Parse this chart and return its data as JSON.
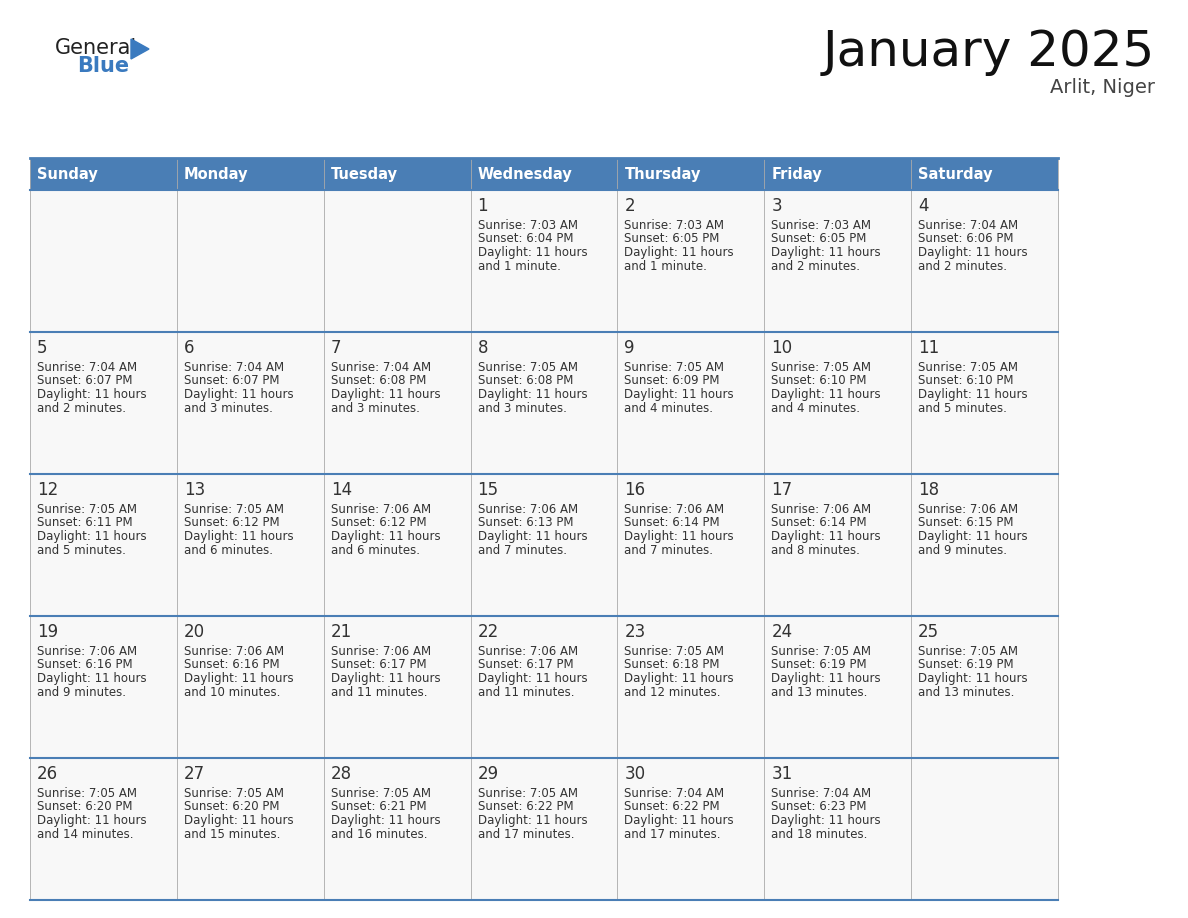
{
  "title": "January 2025",
  "subtitle": "Arlit, Niger",
  "days_of_week": [
    "Sunday",
    "Monday",
    "Tuesday",
    "Wednesday",
    "Thursday",
    "Friday",
    "Saturday"
  ],
  "header_bg": "#4a7eb5",
  "header_text_color": "#ffffff",
  "cell_bg": "#f8f8f8",
  "text_color": "#333333",
  "day_num_color": "#333333",
  "border_color": "#4a7eb5",
  "thin_border_color": "#aaaaaa",
  "title_color": "#111111",
  "subtitle_color": "#444444",
  "logo_general_color": "#222222",
  "logo_blue_color": "#3a7abf",
  "calendar_data": [
    {
      "day": 1,
      "col": 3,
      "row": 0,
      "sunrise": "7:03 AM",
      "sunset": "6:04 PM",
      "daylight_l1": "11 hours",
      "daylight_l2": "and 1 minute."
    },
    {
      "day": 2,
      "col": 4,
      "row": 0,
      "sunrise": "7:03 AM",
      "sunset": "6:05 PM",
      "daylight_l1": "11 hours",
      "daylight_l2": "and 1 minute."
    },
    {
      "day": 3,
      "col": 5,
      "row": 0,
      "sunrise": "7:03 AM",
      "sunset": "6:05 PM",
      "daylight_l1": "11 hours",
      "daylight_l2": "and 2 minutes."
    },
    {
      "day": 4,
      "col": 6,
      "row": 0,
      "sunrise": "7:04 AM",
      "sunset": "6:06 PM",
      "daylight_l1": "11 hours",
      "daylight_l2": "and 2 minutes."
    },
    {
      "day": 5,
      "col": 0,
      "row": 1,
      "sunrise": "7:04 AM",
      "sunset": "6:07 PM",
      "daylight_l1": "11 hours",
      "daylight_l2": "and 2 minutes."
    },
    {
      "day": 6,
      "col": 1,
      "row": 1,
      "sunrise": "7:04 AM",
      "sunset": "6:07 PM",
      "daylight_l1": "11 hours",
      "daylight_l2": "and 3 minutes."
    },
    {
      "day": 7,
      "col": 2,
      "row": 1,
      "sunrise": "7:04 AM",
      "sunset": "6:08 PM",
      "daylight_l1": "11 hours",
      "daylight_l2": "and 3 minutes."
    },
    {
      "day": 8,
      "col": 3,
      "row": 1,
      "sunrise": "7:05 AM",
      "sunset": "6:08 PM",
      "daylight_l1": "11 hours",
      "daylight_l2": "and 3 minutes."
    },
    {
      "day": 9,
      "col": 4,
      "row": 1,
      "sunrise": "7:05 AM",
      "sunset": "6:09 PM",
      "daylight_l1": "11 hours",
      "daylight_l2": "and 4 minutes."
    },
    {
      "day": 10,
      "col": 5,
      "row": 1,
      "sunrise": "7:05 AM",
      "sunset": "6:10 PM",
      "daylight_l1": "11 hours",
      "daylight_l2": "and 4 minutes."
    },
    {
      "day": 11,
      "col": 6,
      "row": 1,
      "sunrise": "7:05 AM",
      "sunset": "6:10 PM",
      "daylight_l1": "11 hours",
      "daylight_l2": "and 5 minutes."
    },
    {
      "day": 12,
      "col": 0,
      "row": 2,
      "sunrise": "7:05 AM",
      "sunset": "6:11 PM",
      "daylight_l1": "11 hours",
      "daylight_l2": "and 5 minutes."
    },
    {
      "day": 13,
      "col": 1,
      "row": 2,
      "sunrise": "7:05 AM",
      "sunset": "6:12 PM",
      "daylight_l1": "11 hours",
      "daylight_l2": "and 6 minutes."
    },
    {
      "day": 14,
      "col": 2,
      "row": 2,
      "sunrise": "7:06 AM",
      "sunset": "6:12 PM",
      "daylight_l1": "11 hours",
      "daylight_l2": "and 6 minutes."
    },
    {
      "day": 15,
      "col": 3,
      "row": 2,
      "sunrise": "7:06 AM",
      "sunset": "6:13 PM",
      "daylight_l1": "11 hours",
      "daylight_l2": "and 7 minutes."
    },
    {
      "day": 16,
      "col": 4,
      "row": 2,
      "sunrise": "7:06 AM",
      "sunset": "6:14 PM",
      "daylight_l1": "11 hours",
      "daylight_l2": "and 7 minutes."
    },
    {
      "day": 17,
      "col": 5,
      "row": 2,
      "sunrise": "7:06 AM",
      "sunset": "6:14 PM",
      "daylight_l1": "11 hours",
      "daylight_l2": "and 8 minutes."
    },
    {
      "day": 18,
      "col": 6,
      "row": 2,
      "sunrise": "7:06 AM",
      "sunset": "6:15 PM",
      "daylight_l1": "11 hours",
      "daylight_l2": "and 9 minutes."
    },
    {
      "day": 19,
      "col": 0,
      "row": 3,
      "sunrise": "7:06 AM",
      "sunset": "6:16 PM",
      "daylight_l1": "11 hours",
      "daylight_l2": "and 9 minutes."
    },
    {
      "day": 20,
      "col": 1,
      "row": 3,
      "sunrise": "7:06 AM",
      "sunset": "6:16 PM",
      "daylight_l1": "11 hours",
      "daylight_l2": "and 10 minutes."
    },
    {
      "day": 21,
      "col": 2,
      "row": 3,
      "sunrise": "7:06 AM",
      "sunset": "6:17 PM",
      "daylight_l1": "11 hours",
      "daylight_l2": "and 11 minutes."
    },
    {
      "day": 22,
      "col": 3,
      "row": 3,
      "sunrise": "7:06 AM",
      "sunset": "6:17 PM",
      "daylight_l1": "11 hours",
      "daylight_l2": "and 11 minutes."
    },
    {
      "day": 23,
      "col": 4,
      "row": 3,
      "sunrise": "7:05 AM",
      "sunset": "6:18 PM",
      "daylight_l1": "11 hours",
      "daylight_l2": "and 12 minutes."
    },
    {
      "day": 24,
      "col": 5,
      "row": 3,
      "sunrise": "7:05 AM",
      "sunset": "6:19 PM",
      "daylight_l1": "11 hours",
      "daylight_l2": "and 13 minutes."
    },
    {
      "day": 25,
      "col": 6,
      "row": 3,
      "sunrise": "7:05 AM",
      "sunset": "6:19 PM",
      "daylight_l1": "11 hours",
      "daylight_l2": "and 13 minutes."
    },
    {
      "day": 26,
      "col": 0,
      "row": 4,
      "sunrise": "7:05 AM",
      "sunset": "6:20 PM",
      "daylight_l1": "11 hours",
      "daylight_l2": "and 14 minutes."
    },
    {
      "day": 27,
      "col": 1,
      "row": 4,
      "sunrise": "7:05 AM",
      "sunset": "6:20 PM",
      "daylight_l1": "11 hours",
      "daylight_l2": "and 15 minutes."
    },
    {
      "day": 28,
      "col": 2,
      "row": 4,
      "sunrise": "7:05 AM",
      "sunset": "6:21 PM",
      "daylight_l1": "11 hours",
      "daylight_l2": "and 16 minutes."
    },
    {
      "day": 29,
      "col": 3,
      "row": 4,
      "sunrise": "7:05 AM",
      "sunset": "6:22 PM",
      "daylight_l1": "11 hours",
      "daylight_l2": "and 17 minutes."
    },
    {
      "day": 30,
      "col": 4,
      "row": 4,
      "sunrise": "7:04 AM",
      "sunset": "6:22 PM",
      "daylight_l1": "11 hours",
      "daylight_l2": "and 17 minutes."
    },
    {
      "day": 31,
      "col": 5,
      "row": 4,
      "sunrise": "7:04 AM",
      "sunset": "6:23 PM",
      "daylight_l1": "11 hours",
      "daylight_l2": "and 18 minutes."
    }
  ]
}
